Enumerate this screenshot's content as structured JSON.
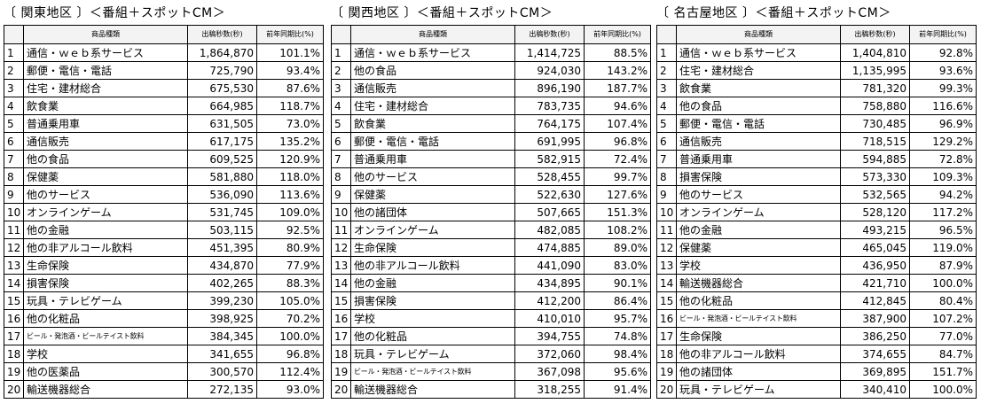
{
  "regions": [
    {
      "title": "〔 関東地区 〕＜番組＋スポットCM＞",
      "headers": [
        "",
        "商品種類",
        "出稿秒数(秒)",
        "前年同期比(%)"
      ],
      "rows": [
        {
          "rank": "1",
          "category": "通信・ｗｅｂ系サービス",
          "seconds": "1,864,870",
          "yoy": "101.1%"
        },
        {
          "rank": "2",
          "category": "郵便・電信・電話",
          "seconds": "725,790",
          "yoy": "93.4%"
        },
        {
          "rank": "3",
          "category": "住宅・建材総合",
          "seconds": "675,530",
          "yoy": "87.6%"
        },
        {
          "rank": "4",
          "category": "飲食業",
          "seconds": "664,985",
          "yoy": "118.7%"
        },
        {
          "rank": "5",
          "category": "普通乗用車",
          "seconds": "631,505",
          "yoy": "73.0%"
        },
        {
          "rank": "6",
          "category": "通信販売",
          "seconds": "617,175",
          "yoy": "135.2%"
        },
        {
          "rank": "7",
          "category": "他の食品",
          "seconds": "609,525",
          "yoy": "120.9%"
        },
        {
          "rank": "8",
          "category": "保健薬",
          "seconds": "581,880",
          "yoy": "118.0%"
        },
        {
          "rank": "9",
          "category": "他のサービス",
          "seconds": "536,090",
          "yoy": "113.6%"
        },
        {
          "rank": "10",
          "category": "オンラインゲーム",
          "seconds": "531,745",
          "yoy": "109.0%"
        },
        {
          "rank": "11",
          "category": "他の金融",
          "seconds": "503,115",
          "yoy": "92.5%"
        },
        {
          "rank": "12",
          "category": "他の非アルコール飲料",
          "seconds": "451,395",
          "yoy": "80.9%"
        },
        {
          "rank": "13",
          "category": "生命保険",
          "seconds": "434,870",
          "yoy": "77.9%"
        },
        {
          "rank": "14",
          "category": "損害保険",
          "seconds": "402,265",
          "yoy": "88.3%"
        },
        {
          "rank": "15",
          "category": "玩具・テレビゲーム",
          "seconds": "399,230",
          "yoy": "105.0%"
        },
        {
          "rank": "16",
          "category": "他の化粧品",
          "seconds": "398,925",
          "yoy": "70.2%"
        },
        {
          "rank": "17",
          "category": "ビール・発泡酒・ビールテイスト飲料",
          "seconds": "384,345",
          "yoy": "100.0%",
          "small": true
        },
        {
          "rank": "18",
          "category": "学校",
          "seconds": "341,655",
          "yoy": "96.8%"
        },
        {
          "rank": "19",
          "category": "他の医薬品",
          "seconds": "300,570",
          "yoy": "112.4%"
        },
        {
          "rank": "20",
          "category": "輸送機器総合",
          "seconds": "272,135",
          "yoy": "93.0%"
        }
      ]
    },
    {
      "title": "〔 関西地区 〕＜番組＋スポットCM＞",
      "headers": [
        "",
        "商品種類",
        "出稿秒数(秒)",
        "前年同期比(%)"
      ],
      "rows": [
        {
          "rank": "1",
          "category": "通信・ｗｅｂ系サービス",
          "seconds": "1,414,725",
          "yoy": "88.5%"
        },
        {
          "rank": "2",
          "category": "他の食品",
          "seconds": "924,030",
          "yoy": "143.2%"
        },
        {
          "rank": "3",
          "category": "通信販売",
          "seconds": "896,190",
          "yoy": "187.7%"
        },
        {
          "rank": "4",
          "category": "住宅・建材総合",
          "seconds": "783,735",
          "yoy": "94.6%"
        },
        {
          "rank": "5",
          "category": "飲食業",
          "seconds": "764,175",
          "yoy": "107.4%"
        },
        {
          "rank": "6",
          "category": "郵便・電信・電話",
          "seconds": "691,995",
          "yoy": "96.8%"
        },
        {
          "rank": "7",
          "category": "普通乗用車",
          "seconds": "582,915",
          "yoy": "72.4%"
        },
        {
          "rank": "8",
          "category": "他のサービス",
          "seconds": "528,455",
          "yoy": "99.7%"
        },
        {
          "rank": "9",
          "category": "保健薬",
          "seconds": "522,630",
          "yoy": "127.6%"
        },
        {
          "rank": "10",
          "category": "他の諸団体",
          "seconds": "507,665",
          "yoy": "151.3%"
        },
        {
          "rank": "11",
          "category": "オンラインゲーム",
          "seconds": "482,085",
          "yoy": "108.2%"
        },
        {
          "rank": "12",
          "category": "生命保険",
          "seconds": "474,885",
          "yoy": "89.0%"
        },
        {
          "rank": "13",
          "category": "他の非アルコール飲料",
          "seconds": "441,090",
          "yoy": "83.0%"
        },
        {
          "rank": "14",
          "category": "他の金融",
          "seconds": "434,895",
          "yoy": "90.1%"
        },
        {
          "rank": "15",
          "category": "損害保険",
          "seconds": "412,200",
          "yoy": "86.4%"
        },
        {
          "rank": "16",
          "category": "学校",
          "seconds": "410,010",
          "yoy": "95.7%"
        },
        {
          "rank": "17",
          "category": "他の化粧品",
          "seconds": "394,755",
          "yoy": "74.8%"
        },
        {
          "rank": "18",
          "category": "玩具・テレビゲーム",
          "seconds": "372,060",
          "yoy": "98.4%"
        },
        {
          "rank": "19",
          "category": "ビール・発泡酒・ビールテイスト飲料",
          "seconds": "367,098",
          "yoy": "95.6%",
          "small": true
        },
        {
          "rank": "20",
          "category": "輸送機器総合",
          "seconds": "318,255",
          "yoy": "91.4%"
        }
      ]
    },
    {
      "title": "〔 名古屋地区 〕＜番組＋スポットCM＞",
      "headers": [
        "",
        "商品種類",
        "出稿秒数(秒)",
        "前年同期比(%)"
      ],
      "rows": [
        {
          "rank": "1",
          "category": "通信・ｗｅｂ系サービス",
          "seconds": "1,404,810",
          "yoy": "92.8%"
        },
        {
          "rank": "2",
          "category": "住宅・建材総合",
          "seconds": "1,135,995",
          "yoy": "93.6%"
        },
        {
          "rank": "3",
          "category": "飲食業",
          "seconds": "781,320",
          "yoy": "99.3%"
        },
        {
          "rank": "4",
          "category": "他の食品",
          "seconds": "758,880",
          "yoy": "116.6%"
        },
        {
          "rank": "5",
          "category": "郵便・電信・電話",
          "seconds": "730,485",
          "yoy": "96.9%"
        },
        {
          "rank": "6",
          "category": "通信販売",
          "seconds": "718,515",
          "yoy": "129.2%"
        },
        {
          "rank": "7",
          "category": "普通乗用車",
          "seconds": "594,885",
          "yoy": "72.8%"
        },
        {
          "rank": "8",
          "category": "損害保険",
          "seconds": "573,330",
          "yoy": "109.3%"
        },
        {
          "rank": "9",
          "category": "他のサービス",
          "seconds": "532,565",
          "yoy": "94.2%"
        },
        {
          "rank": "10",
          "category": "オンラインゲーム",
          "seconds": "528,120",
          "yoy": "117.2%"
        },
        {
          "rank": "11",
          "category": "他の金融",
          "seconds": "493,215",
          "yoy": "96.5%"
        },
        {
          "rank": "12",
          "category": "保健薬",
          "seconds": "465,045",
          "yoy": "119.0%"
        },
        {
          "rank": "13",
          "category": "学校",
          "seconds": "436,950",
          "yoy": "87.9%"
        },
        {
          "rank": "14",
          "category": "輸送機器総合",
          "seconds": "421,710",
          "yoy": "100.0%"
        },
        {
          "rank": "15",
          "category": "他の化粧品",
          "seconds": "412,845",
          "yoy": "80.4%"
        },
        {
          "rank": "16",
          "category": "ビール・発泡酒・ビールテイスト飲料",
          "seconds": "387,900",
          "yoy": "107.2%",
          "small": true
        },
        {
          "rank": "17",
          "category": "生命保険",
          "seconds": "386,250",
          "yoy": "77.0%"
        },
        {
          "rank": "18",
          "category": "他の非アルコール飲料",
          "seconds": "374,655",
          "yoy": "84.7%"
        },
        {
          "rank": "19",
          "category": "他の諸団体",
          "seconds": "369,895",
          "yoy": "151.7%"
        },
        {
          "rank": "20",
          "category": "玩具・テレビゲーム",
          "seconds": "340,410",
          "yoy": "100.0%"
        }
      ]
    }
  ]
}
